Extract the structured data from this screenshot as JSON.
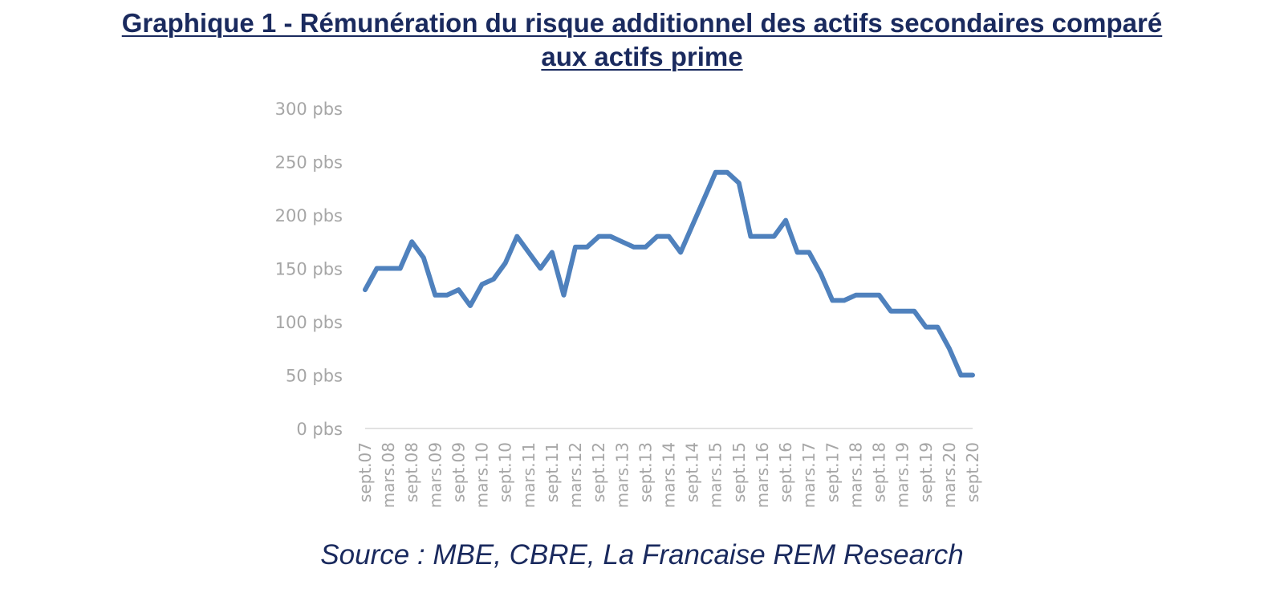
{
  "title_line1": "Graphique 1 - Rémunération du risque additionnel des actifs secondaires comparé",
  "title_line2": "aux actifs prime",
  "source": "Source : MBE, CBRE, La Francaise REM Research",
  "colors": {
    "title": "#1a2a5e",
    "line": "#4f81bd",
    "axis_text": "#a6a6a6",
    "axis_line": "#d9d9d9"
  },
  "chart_data": {
    "type": "line",
    "title": "Graphique 1 - Rémunération du risque additionnel des actifs secondaires comparé aux actifs prime",
    "xlabel": "",
    "ylabel": "",
    "ylim": [
      0,
      300
    ],
    "yticks": [
      0,
      50,
      100,
      150,
      200,
      250,
      300
    ],
    "ytick_labels": [
      "0 pbs",
      "50 pbs",
      "100 pbs",
      "150 pbs",
      "200 pbs",
      "250 pbs",
      "300 pbs"
    ],
    "xtick_labels": [
      "sept.07",
      "mars.08",
      "sept.08",
      "mars.09",
      "sept.09",
      "mars.10",
      "sept.10",
      "mars.11",
      "sept.11",
      "mars.12",
      "sept.12",
      "mars.13",
      "sept.13",
      "mars.14",
      "sept.14",
      "mars.15",
      "sept.15",
      "mars.16",
      "sept.16",
      "mars.17",
      "sept.17",
      "mars.18",
      "sept.18",
      "mars.19",
      "sept.19",
      "mars.20",
      "sept.20"
    ],
    "x": [
      "sept.07",
      "déc.07",
      "mars.08",
      "juin.08",
      "sept.08",
      "déc.08",
      "mars.09",
      "juin.09",
      "sept.09",
      "déc.09",
      "mars.10",
      "juin.10",
      "sept.10",
      "déc.10",
      "mars.11",
      "juin.11",
      "sept.11",
      "déc.11",
      "mars.12",
      "juin.12",
      "sept.12",
      "déc.12",
      "mars.13",
      "juin.13",
      "sept.13",
      "déc.13",
      "mars.14",
      "juin.14",
      "sept.14",
      "déc.14",
      "mars.15",
      "juin.15",
      "sept.15",
      "déc.15",
      "mars.16",
      "juin.16",
      "sept.16",
      "déc.16",
      "mars.17",
      "juin.17",
      "sept.17",
      "déc.17",
      "mars.18",
      "juin.18",
      "sept.18",
      "déc.18",
      "mars.19",
      "juin.19",
      "sept.19",
      "déc.19",
      "mars.20",
      "juin.20",
      "sept.20"
    ],
    "series": [
      {
        "values": [
          130,
          150,
          150,
          150,
          175,
          160,
          125,
          125,
          130,
          115,
          135,
          140,
          155,
          180,
          165,
          150,
          165,
          125,
          170,
          170,
          180,
          180,
          175,
          170,
          170,
          180,
          180,
          165,
          190,
          215,
          240,
          240,
          230,
          180,
          180,
          180,
          195,
          165,
          165,
          145,
          120,
          120,
          125,
          125,
          125,
          110,
          110,
          110,
          95,
          95,
          75,
          50,
          50
        ]
      }
    ],
    "grid": false,
    "legend": "none"
  }
}
